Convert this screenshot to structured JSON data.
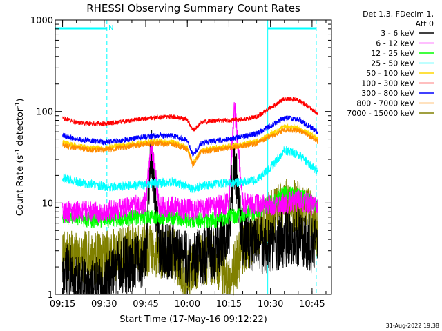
{
  "chart_data": {
    "type": "line",
    "title": "RHESSI Observing Summary Count Rates",
    "xlabel": "Start Time (17-May-16 09:12:22)",
    "ylabel_main": "Count Rate (s",
    "ylabel_sup1": "-1",
    "ylabel_mid": " detector",
    "ylabel_sup2": "-1",
    "ylabel_end": ")",
    "y_scale": "log",
    "ylim": [
      1,
      1000
    ],
    "xlim": [
      "09:12:22",
      "10:52:00"
    ],
    "x_ticks": [
      "09:15",
      "09:30",
      "09:45",
      "10:00",
      "10:15",
      "10:30",
      "10:45"
    ],
    "y_ticks": [
      "1",
      "10",
      "100",
      "1000"
    ],
    "legend_header": [
      "Det 1,3, FDecim 1,",
      "Att 0"
    ],
    "legend_placement": "right",
    "night_marker": "N",
    "footer_date": "31-Aug-2022 19:38",
    "night_intervals": [
      [
        "09:12:22",
        "09:31:00"
      ],
      [
        "10:29:00",
        "10:46:30"
      ]
    ],
    "series": [
      {
        "name": "3 - 6 keV",
        "color": "#000000",
        "x": [
          "09:15",
          "09:20",
          "09:25",
          "09:30",
          "09:35",
          "09:40",
          "09:45",
          "09:47",
          "09:50",
          "09:55",
          "10:00",
          "10:05",
          "10:10",
          "10:15",
          "10:17",
          "10:20",
          "10:25",
          "10:30",
          "10:35",
          "10:40",
          "10:45",
          "10:47"
        ],
        "values": [
          2,
          1.5,
          1.2,
          1.3,
          2,
          2.2,
          2.5,
          40,
          3,
          3,
          2.5,
          2.5,
          3,
          5,
          30,
          4,
          3.5,
          3.5,
          4,
          4.2,
          3.5,
          3
        ]
      },
      {
        "name": "6 - 12 keV",
        "color": "#ff00ff",
        "x": [
          "09:15",
          "09:20",
          "09:25",
          "09:30",
          "09:35",
          "09:40",
          "09:45",
          "09:47",
          "09:50",
          "09:55",
          "10:00",
          "10:05",
          "10:10",
          "10:15",
          "10:17",
          "10:20",
          "10:25",
          "10:30",
          "10:35",
          "10:40",
          "10:45",
          "10:47"
        ],
        "values": [
          8,
          8,
          8,
          8,
          8.5,
          9,
          10,
          45,
          9,
          9,
          8.5,
          8.5,
          9,
          10,
          120,
          10,
          9.5,
          9.5,
          10,
          10.5,
          9.5,
          9
        ]
      },
      {
        "name": "12 - 25 keV",
        "color": "#00ff00",
        "x": [
          "09:15",
          "09:20",
          "09:25",
          "09:30",
          "09:35",
          "09:40",
          "09:45",
          "09:50",
          "09:55",
          "10:00",
          "10:05",
          "10:10",
          "10:15",
          "10:20",
          "10:25",
          "10:30",
          "10:35",
          "10:40",
          "10:45",
          "10:47"
        ],
        "values": [
          7,
          7,
          6.5,
          6.5,
          6.5,
          7,
          7,
          7,
          7,
          6.5,
          6.5,
          6.5,
          7,
          7.5,
          8,
          10,
          12.5,
          12,
          10,
          9
        ]
      },
      {
        "name": "25 - 50 keV",
        "color": "#00ffff",
        "x": [
          "09:15",
          "09:20",
          "09:25",
          "09:30",
          "09:35",
          "09:40",
          "09:45",
          "09:50",
          "09:55",
          "10:00",
          "10:02",
          "10:05",
          "10:10",
          "10:15",
          "10:20",
          "10:25",
          "10:30",
          "10:35",
          "10:40",
          "10:45",
          "10:47"
        ],
        "values": [
          19,
          17,
          16,
          15,
          15,
          15.5,
          16,
          16.5,
          17,
          15,
          14,
          15.5,
          16,
          16.5,
          17,
          18,
          24,
          38,
          34,
          25,
          22
        ]
      },
      {
        "name": "50 - 100 keV",
        "color": "#ffd700",
        "x": [
          "09:15",
          "09:20",
          "09:25",
          "09:30",
          "09:35",
          "09:40",
          "09:45",
          "09:50",
          "09:55",
          "10:00",
          "10:02",
          "10:05",
          "10:10",
          "10:15",
          "10:20",
          "10:25",
          "10:30",
          "10:35",
          "10:40",
          "10:45",
          "10:47"
        ],
        "values": [
          46,
          42,
          40,
          40,
          42,
          44,
          46,
          47,
          46,
          40,
          27,
          37,
          40,
          42,
          44,
          47,
          56,
          68,
          66,
          55,
          50
        ]
      },
      {
        "name": "100 - 300 keV",
        "color": "#ff0000",
        "x": [
          "09:15",
          "09:20",
          "09:25",
          "09:30",
          "09:35",
          "09:40",
          "09:45",
          "09:50",
          "09:55",
          "10:00",
          "10:02",
          "10:05",
          "10:10",
          "10:15",
          "10:20",
          "10:25",
          "10:30",
          "10:35",
          "10:40",
          "10:45",
          "10:47"
        ],
        "values": [
          85,
          76,
          74,
          74,
          76,
          80,
          84,
          87,
          88,
          82,
          62,
          76,
          80,
          80,
          82,
          87,
          110,
          138,
          134,
          105,
          95
        ]
      },
      {
        "name": "300 - 800 keV",
        "color": "#0000ff",
        "x": [
          "09:15",
          "09:20",
          "09:25",
          "09:30",
          "09:35",
          "09:40",
          "09:45",
          "09:50",
          "09:55",
          "10:00",
          "10:02",
          "10:05",
          "10:10",
          "10:15",
          "10:20",
          "10:25",
          "10:30",
          "10:35",
          "10:40",
          "10:45",
          "10:47"
        ],
        "values": [
          55,
          50,
          48,
          46,
          48,
          50,
          53,
          55,
          54,
          48,
          33,
          45,
          48,
          50,
          53,
          57,
          70,
          85,
          82,
          66,
          60
        ]
      },
      {
        "name": "800 - 7000 keV",
        "color": "#ff8c00",
        "x": [
          "09:15",
          "09:20",
          "09:25",
          "09:30",
          "09:35",
          "09:40",
          "09:45",
          "09:50",
          "09:55",
          "10:00",
          "10:02",
          "10:05",
          "10:10",
          "10:15",
          "10:20",
          "10:25",
          "10:30",
          "10:35",
          "10:40",
          "10:45",
          "10:47"
        ],
        "values": [
          43,
          40,
          38,
          38,
          40,
          42,
          44,
          45,
          44,
          39,
          26,
          36,
          38,
          40,
          42,
          45,
          53,
          63,
          62,
          52,
          47
        ]
      },
      {
        "name": "7000 - 15000 keV",
        "color": "#808000",
        "x": [
          "09:15",
          "09:20",
          "09:25",
          "09:30",
          "09:35",
          "09:40",
          "09:45",
          "09:50",
          "09:55",
          "10:00",
          "10:05",
          "10:10",
          "10:15",
          "10:20",
          "10:25",
          "10:30",
          "10:35",
          "10:40",
          "10:45",
          "10:47"
        ],
        "values": [
          2.5,
          2.5,
          2.5,
          2.5,
          2.8,
          3,
          3,
          3,
          2.8,
          1.5,
          2.5,
          2.5,
          1.5,
          3,
          5,
          7,
          9.5,
          9,
          7,
          5
        ]
      }
    ]
  }
}
